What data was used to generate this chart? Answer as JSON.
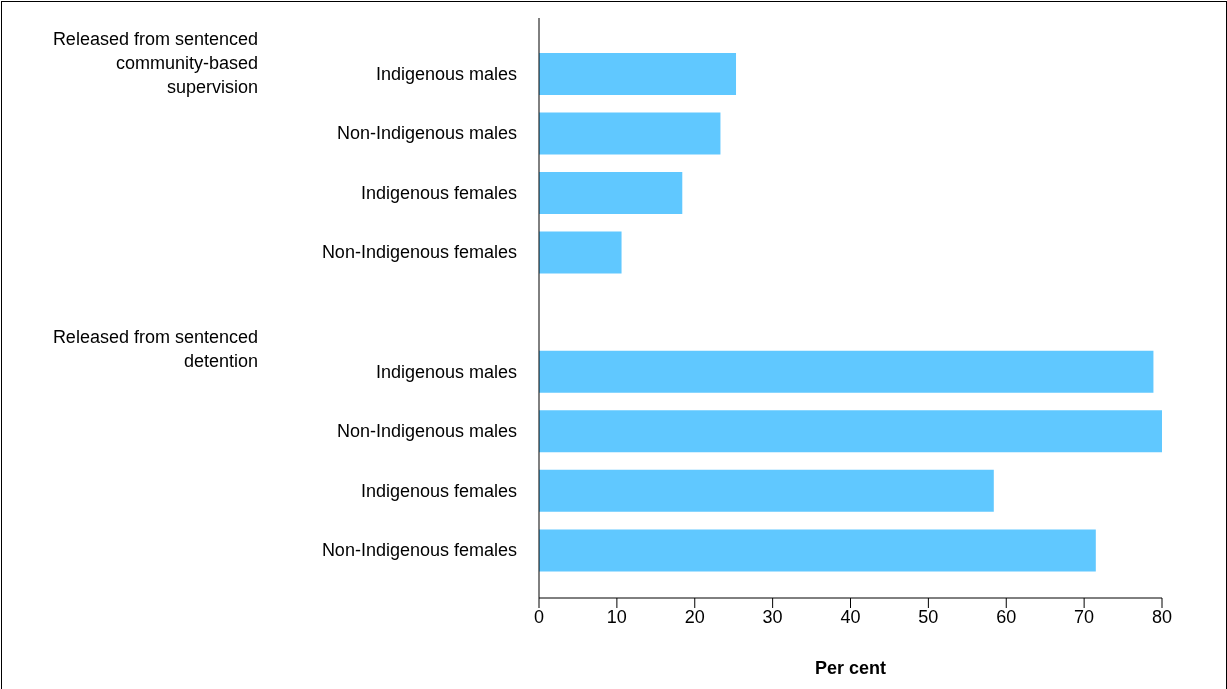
{
  "chart_data": {
    "type": "bar",
    "orientation": "horizontal",
    "xlabel": "Per cent",
    "annotations": [
      "Released from sentenced community-based supervision",
      "Released from sentenced detention"
    ],
    "categories": [
      "Indigenous males",
      "Non-Indigenous males",
      "Indigenous females",
      "Non-Indigenous females",
      null,
      "Indigenous males",
      "Non-Indigenous males",
      "Indigenous females",
      "Non-Indigenous females"
    ],
    "values": [
      25.3,
      23.3,
      18.4,
      10.6,
      null,
      78.9,
      80,
      58.4,
      71.5
    ],
    "color": "#60c8ff",
    "xlim": [
      0,
      80
    ],
    "xticks": [
      0,
      10,
      20,
      30,
      40,
      50,
      60,
      70,
      80
    ],
    "grid": false,
    "legend": false
  }
}
